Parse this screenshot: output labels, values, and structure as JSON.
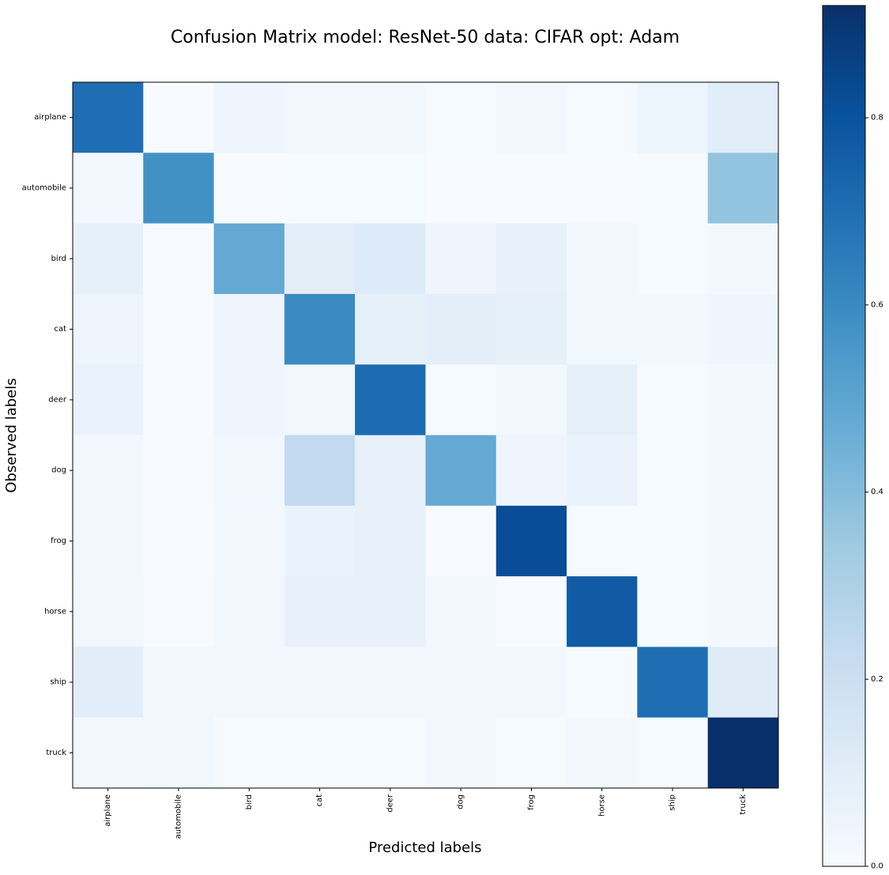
{
  "chart_data": {
    "type": "heatmap",
    "title": "Confusion Matrix model: ResNet-50 data: CIFAR opt: Adam",
    "xlabel": "Predicted labels",
    "ylabel": "Observed labels",
    "x_categories": [
      "airplane",
      "automobile",
      "bird",
      "cat",
      "deer",
      "dog",
      "frog",
      "horse",
      "ship",
      "truck"
    ],
    "y_categories": [
      "airplane",
      "automobile",
      "bird",
      "cat",
      "deer",
      "dog",
      "frog",
      "horse",
      "ship",
      "truck"
    ],
    "values": [
      [
        0.7,
        0.0,
        0.04,
        0.03,
        0.03,
        0.01,
        0.02,
        0.01,
        0.05,
        0.1
      ],
      [
        0.02,
        0.58,
        0.0,
        0.01,
        0.01,
        0.0,
        0.0,
        0.0,
        0.01,
        0.37
      ],
      [
        0.08,
        0.0,
        0.48,
        0.09,
        0.12,
        0.04,
        0.07,
        0.03,
        0.01,
        0.02
      ],
      [
        0.04,
        0.0,
        0.04,
        0.6,
        0.08,
        0.09,
        0.08,
        0.03,
        0.02,
        0.04
      ],
      [
        0.06,
        0.0,
        0.04,
        0.03,
        0.71,
        0.01,
        0.03,
        0.08,
        0.01,
        0.02
      ],
      [
        0.02,
        0.0,
        0.03,
        0.24,
        0.07,
        0.48,
        0.04,
        0.06,
        0.01,
        0.02
      ],
      [
        0.02,
        0.0,
        0.02,
        0.06,
        0.07,
        0.0,
        0.82,
        0.01,
        0.01,
        0.02
      ],
      [
        0.03,
        0.0,
        0.03,
        0.07,
        0.07,
        0.02,
        0.0,
        0.77,
        0.01,
        0.02
      ],
      [
        0.1,
        0.02,
        0.02,
        0.02,
        0.02,
        0.02,
        0.02,
        0.01,
        0.7,
        0.11
      ],
      [
        0.02,
        0.03,
        0.01,
        0.01,
        0.01,
        0.02,
        0.01,
        0.02,
        0.01,
        0.92
      ]
    ],
    "colorbar": {
      "min": 0.0,
      "max": 0.92,
      "ticks": [
        "0.0",
        "0.2",
        "0.4",
        "0.6",
        "0.8"
      ],
      "colormap": "Blues"
    },
    "grid": false,
    "legend": "colorbar-right"
  }
}
